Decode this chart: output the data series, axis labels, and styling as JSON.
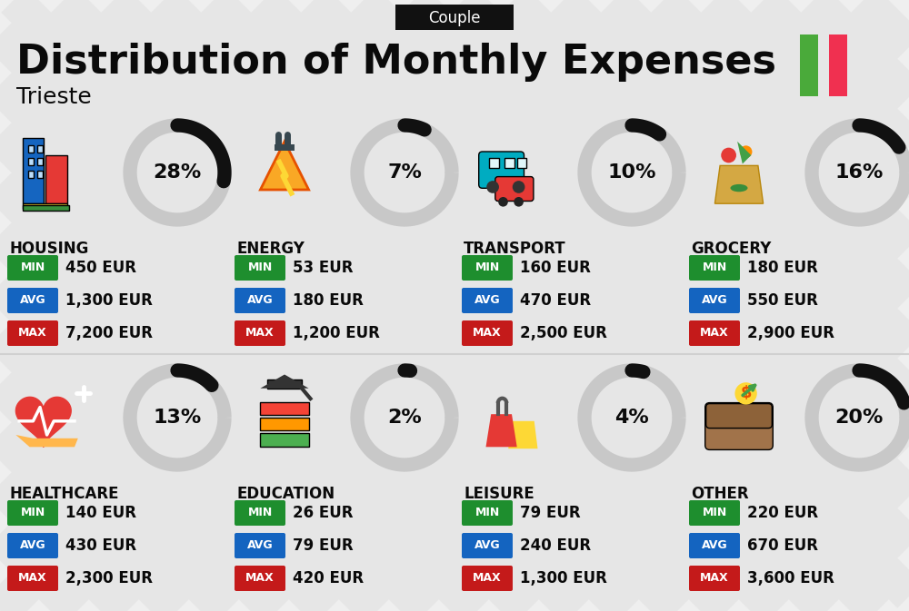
{
  "title": "Distribution of Monthly Expenses",
  "subtitle": "Couple",
  "location": "Trieste",
  "bg_color": "#efefef",
  "categories": [
    {
      "name": "HOUSING",
      "pct": 28,
      "min": "450 EUR",
      "avg": "1,300 EUR",
      "max": "7,200 EUR",
      "col": 0,
      "row": 0
    },
    {
      "name": "ENERGY",
      "pct": 7,
      "min": "53 EUR",
      "avg": "180 EUR",
      "max": "1,200 EUR",
      "col": 1,
      "row": 0
    },
    {
      "name": "TRANSPORT",
      "pct": 10,
      "min": "160 EUR",
      "avg": "470 EUR",
      "max": "2,500 EUR",
      "col": 2,
      "row": 0
    },
    {
      "name": "GROCERY",
      "pct": 16,
      "min": "180 EUR",
      "avg": "550 EUR",
      "max": "2,900 EUR",
      "col": 3,
      "row": 0
    },
    {
      "name": "HEALTHCARE",
      "pct": 13,
      "min": "140 EUR",
      "avg": "430 EUR",
      "max": "2,300 EUR",
      "col": 0,
      "row": 1
    },
    {
      "name": "EDUCATION",
      "pct": 2,
      "min": "26 EUR",
      "avg": "79 EUR",
      "max": "420 EUR",
      "col": 1,
      "row": 1
    },
    {
      "name": "LEISURE",
      "pct": 4,
      "min": "79 EUR",
      "avg": "240 EUR",
      "max": "1,300 EUR",
      "col": 2,
      "row": 1
    },
    {
      "name": "OTHER",
      "pct": 20,
      "min": "220 EUR",
      "avg": "670 EUR",
      "max": "3,600 EUR",
      "col": 3,
      "row": 1
    }
  ],
  "min_color": "#1e8e2e",
  "avg_color": "#1464c0",
  "max_color": "#c41a1a",
  "italy_green": "#4aaa3a",
  "italy_red": "#f03050",
  "stripe_color": "#e0e0e0",
  "arc_bg_color": "#c8c8c8",
  "arc_fg_color": "#111111",
  "couple_box_color": "#111111",
  "title_color": "#0a0a0a",
  "badge_text_color": "#ffffff"
}
